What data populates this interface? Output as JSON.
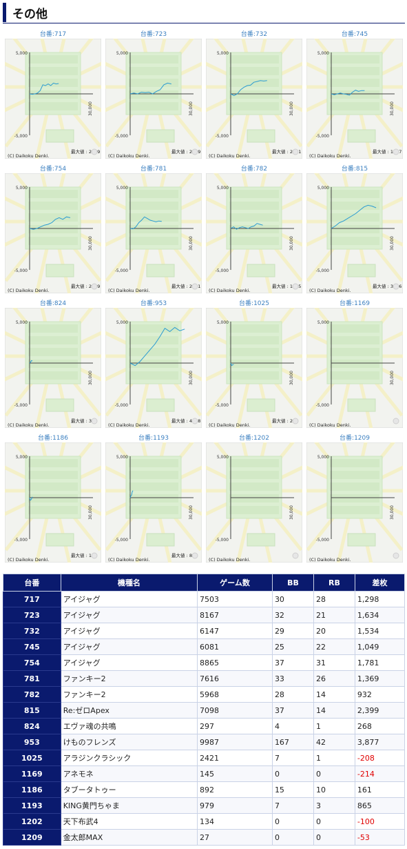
{
  "section_title": "その他",
  "graph_copyright": "(C) Daikoku Denki.",
  "graph_axis": {
    "y_top": "5,000",
    "y_bottom": "-5,000",
    "x_right": "30,000"
  },
  "max_label_prefix": "最大値 : ",
  "graphs": [
    {
      "label": "台番:717",
      "max": "2239",
      "line": [
        0,
        -50,
        0,
        100,
        400,
        1100,
        1000,
        1200,
        1000,
        1300,
        1200,
        1250
      ],
      "end": 0.48
    },
    {
      "label": "台番:723",
      "max": "2059",
      "line": [
        0,
        100,
        0,
        200,
        150,
        200,
        0,
        300,
        500,
        1100,
        1300,
        1200
      ],
      "end": 0.68
    },
    {
      "label": "台番:732",
      "max": "2201",
      "line": [
        0,
        -200,
        0,
        500,
        800,
        1000,
        1050,
        1400,
        1500,
        1600,
        1550,
        1600
      ],
      "end": 0.6
    },
    {
      "label": "台番:745",
      "max": "1197",
      "line": [
        0,
        -100,
        0,
        100,
        0,
        -50,
        -150,
        200,
        450,
        300,
        400,
        400
      ],
      "end": 0.55
    },
    {
      "label": "台番:754",
      "max": "2499",
      "line": [
        0,
        -100,
        0,
        200,
        400,
        500,
        700,
        1100,
        1300,
        1100,
        1400,
        1300
      ],
      "end": 0.67
    },
    {
      "label": "台番:781",
      "max": "2601",
      "line": [
        0,
        -50,
        200,
        700,
        1000,
        1400,
        1200,
        1000,
        900,
        800,
        900,
        850
      ],
      "end": 0.52
    },
    {
      "label": "台番:782",
      "max": "1755",
      "line": [
        0,
        200,
        -100,
        100,
        200,
        100,
        0,
        200,
        300,
        600,
        500,
        400
      ],
      "end": 0.53
    },
    {
      "label": "台番:815",
      "max": "3046",
      "line": [
        0,
        300,
        700,
        900,
        1200,
        1500,
        1800,
        2200,
        2600,
        2800,
        2700,
        2500
      ],
      "end": 0.74
    },
    {
      "label": "台番:824",
      "max": "333",
      "line": [
        0,
        100,
        300,
        250
      ],
      "end": 0.02
    },
    {
      "label": "台番:953",
      "max": "4548",
      "line": [
        0,
        -300,
        200,
        900,
        1600,
        2300,
        3200,
        4200,
        3800,
        4300,
        3900,
        4100
      ],
      "end": 0.9
    },
    {
      "label": "台番:1025",
      "max": "29",
      "line": [
        0,
        -300,
        -200,
        -150
      ],
      "end": 0.05
    },
    {
      "label": "台番:1169",
      "max": "0",
      "line": [],
      "end": 0
    },
    {
      "label": "台番:1186",
      "max": "161",
      "line": [
        0,
        -300,
        -250,
        -100,
        100
      ],
      "end": 0.04
    },
    {
      "label": "台番:1193",
      "max": "865",
      "line": [
        0,
        200,
        300,
        700,
        850
      ],
      "end": 0.04
    },
    {
      "label": "台番:1202",
      "max": "0",
      "line": [],
      "end": 0
    },
    {
      "label": "台番:1209",
      "max": "0",
      "line": [],
      "end": 0
    }
  ],
  "table": {
    "headers": [
      "台番",
      "機種名",
      "ゲーム数",
      "BB",
      "RB",
      "差枚"
    ],
    "rows": [
      [
        "717",
        "アイジャグ",
        "7503",
        "30",
        "28",
        "1,298"
      ],
      [
        "723",
        "アイジャグ",
        "8167",
        "32",
        "21",
        "1,634"
      ],
      [
        "732",
        "アイジャグ",
        "6147",
        "29",
        "20",
        "1,534"
      ],
      [
        "745",
        "アイジャグ",
        "6081",
        "25",
        "22",
        "1,049"
      ],
      [
        "754",
        "アイジャグ",
        "8865",
        "37",
        "31",
        "1,781"
      ],
      [
        "781",
        "ファンキー2",
        "7616",
        "33",
        "26",
        "1,369"
      ],
      [
        "782",
        "ファンキー2",
        "5968",
        "28",
        "14",
        "932"
      ],
      [
        "815",
        "Re:ゼロApex",
        "7098",
        "37",
        "14",
        "2,399"
      ],
      [
        "824",
        "エヴァ魂の共鳴",
        "297",
        "4",
        "1",
        "268"
      ],
      [
        "953",
        "けものフレンズ",
        "9987",
        "167",
        "42",
        "3,877"
      ],
      [
        "1025",
        "アラジンクラシック",
        "2421",
        "7",
        "1",
        "-208"
      ],
      [
        "1169",
        "アネモネ",
        "145",
        "0",
        "0",
        "-214"
      ],
      [
        "1186",
        "タブータトゥー",
        "892",
        "15",
        "10",
        "161"
      ],
      [
        "1193",
        "KING黄門ちゃま",
        "979",
        "7",
        "3",
        "865"
      ],
      [
        "1202",
        "天下布武4",
        "134",
        "0",
        "0",
        "-100"
      ],
      [
        "1209",
        "金太郎MAX",
        "27",
        "0",
        "0",
        "-53"
      ]
    ]
  }
}
